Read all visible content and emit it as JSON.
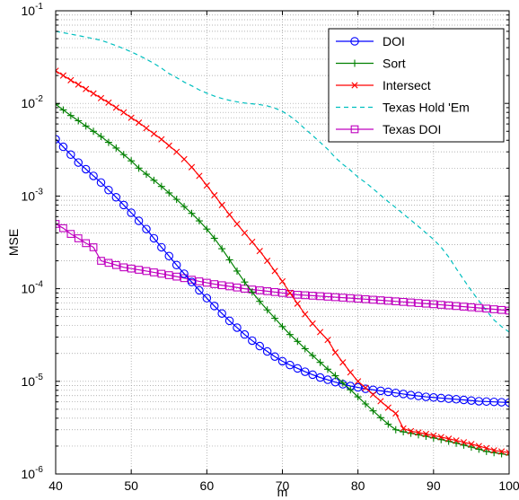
{
  "chart_data": {
    "type": "line",
    "title": "",
    "xlabel": "m",
    "ylabel": "MSE",
    "xlim": [
      40,
      100
    ],
    "ylim_exponents": [
      -6,
      -1
    ],
    "yscale": "log",
    "grid": true,
    "legend_position": "top-right",
    "x_ticks": [
      "40",
      "50",
      "60",
      "70",
      "80",
      "90",
      "100"
    ],
    "y_tick_mantissa": "10",
    "y_tick_exponents": [
      "-6",
      "-5",
      "-4",
      "-3",
      "-2",
      "-1"
    ],
    "x_start": 40,
    "x_step": 1,
    "series": [
      {
        "name": "DOI",
        "color": "#0000ff",
        "marker": "circle",
        "dash": "solid",
        "values": [
          0.0041,
          0.0034,
          0.0028,
          0.0023,
          0.00195,
          0.00165,
          0.0014,
          0.00116,
          0.00097,
          0.0008,
          0.00066,
          0.00054,
          0.00044,
          0.00035,
          0.00028,
          0.000225,
          0.00018,
          0.000145,
          0.000118,
          9.6e-05,
          7.9e-05,
          6.5e-05,
          5.4e-05,
          4.5e-05,
          3.8e-05,
          3.2e-05,
          2.75e-05,
          2.4e-05,
          2.1e-05,
          1.85e-05,
          1.65e-05,
          1.5e-05,
          1.38e-05,
          1.27e-05,
          1.18e-05,
          1.1e-05,
          1.04e-05,
          9.8e-06,
          9.3e-06,
          8.9e-06,
          8.6e-06,
          8.3e-06,
          8.1e-06,
          7.9e-06,
          7.7e-06,
          7.5e-06,
          7.3e-06,
          7.1e-06,
          6.95e-06,
          6.8e-06,
          6.7e-06,
          6.6e-06,
          6.5e-06,
          6.4e-06,
          6.3e-06,
          6.2e-06,
          6.1e-06,
          6.05e-06,
          6e-06,
          5.95e-06,
          5.9e-06
        ]
      },
      {
        "name": "Sort",
        "color": "#008000",
        "marker": "plus",
        "dash": "solid",
        "values": [
          0.0098,
          0.0085,
          0.0074,
          0.0065,
          0.0057,
          0.005,
          0.0044,
          0.0038,
          0.0033,
          0.0028,
          0.0024,
          0.002,
          0.00172,
          0.00148,
          0.00127,
          0.00108,
          0.00092,
          0.00077,
          0.00065,
          0.00054,
          0.00044,
          0.00035,
          0.00027,
          0.000205,
          0.000155,
          0.000118,
          9.2e-05,
          7.3e-05,
          5.9e-05,
          4.8e-05,
          3.9e-05,
          3.2e-05,
          2.7e-05,
          2.25e-05,
          1.9e-05,
          1.6e-05,
          1.35e-05,
          1.15e-05,
          9.6e-06,
          8.1e-06,
          6.8e-06,
          5.7e-06,
          4.8e-06,
          4.05e-06,
          3.45e-06,
          3e-06,
          2.85e-06,
          2.75e-06,
          2.65e-06,
          2.55e-06,
          2.45e-06,
          2.35e-06,
          2.25e-06,
          2.15e-06,
          2.05e-06,
          1.95e-06,
          1.85e-06,
          1.75e-06,
          1.7e-06,
          1.65e-06,
          1.6e-06
        ]
      },
      {
        "name": "Intersect",
        "color": "#ff0000",
        "marker": "x",
        "dash": "solid",
        "values": [
          0.0225,
          0.02,
          0.0178,
          0.016,
          0.0143,
          0.0128,
          0.0114,
          0.0102,
          0.009,
          0.008,
          0.007,
          0.0062,
          0.0054,
          0.0047,
          0.0041,
          0.0035,
          0.003,
          0.0025,
          0.00205,
          0.00165,
          0.0013,
          0.00102,
          0.0008,
          0.00063,
          0.0005,
          0.0004,
          0.00032,
          0.000255,
          0.0002,
          0.000155,
          0.00012,
          9e-05,
          6.9e-05,
          5.3e-05,
          4.2e-05,
          3.4e-05,
          2.8e-05,
          2.05e-05,
          1.6e-05,
          1.25e-05,
          1e-05,
          8.5e-06,
          7.2e-06,
          6.1e-06,
          5.2e-06,
          4.5e-06,
          3.1e-06,
          2.9e-06,
          2.8e-06,
          2.7e-06,
          2.6e-06,
          2.5e-06,
          2.4e-06,
          2.3e-06,
          2.2e-06,
          2.1e-06,
          2e-06,
          1.9e-06,
          1.8e-06,
          1.75e-06,
          1.7e-06
        ]
      },
      {
        "name": "Texas Hold 'Em",
        "color": "#00bfbf",
        "marker": "none",
        "dash": "dashed",
        "values": [
          0.06,
          0.058,
          0.056,
          0.054,
          0.052,
          0.05,
          0.048,
          0.045,
          0.042,
          0.039,
          0.036,
          0.033,
          0.03,
          0.027,
          0.024,
          0.021,
          0.019,
          0.017,
          0.0155,
          0.014,
          0.0129,
          0.012,
          0.0113,
          0.0108,
          0.0104,
          0.0101,
          0.0099,
          0.0097,
          0.0094,
          0.0089,
          0.0082,
          0.0073,
          0.0063,
          0.0053,
          0.0045,
          0.0038,
          0.0032,
          0.0026,
          0.0022,
          0.0019,
          0.0016,
          0.0014,
          0.0012,
          0.00102,
          0.00087,
          0.00075,
          0.00064,
          0.00055,
          0.00047,
          0.0004,
          0.00034,
          0.00028,
          0.00022,
          0.000165,
          0.000125,
          9.5e-05,
          7.4e-05,
          5.8e-05,
          4.6e-05,
          3.9e-05,
          3.4e-05
        ]
      },
      {
        "name": "Texas DOI",
        "color": "#bf00bf",
        "marker": "square",
        "dash": "solid",
        "values": [
          0.0005,
          0.00045,
          0.00039,
          0.00035,
          0.00031,
          0.00028,
          0.0002,
          0.00019,
          0.00018,
          0.00017,
          0.000165,
          0.00016,
          0.000155,
          0.00015,
          0.000145,
          0.00014,
          0.000135,
          0.00013,
          0.000125,
          0.00012,
          0.000116,
          0.000112,
          0.000109,
          0.000106,
          0.000103,
          0.0001,
          9.8e-05,
          9.6e-05,
          9.4e-05,
          9.2e-05,
          9e-05,
          8.8e-05,
          8.6e-05,
          8.5e-05,
          8.4e-05,
          8.3e-05,
          8.2e-05,
          8.1e-05,
          8e-05,
          7.9e-05,
          7.8e-05,
          7.7e-05,
          7.6e-05,
          7.5e-05,
          7.4e-05,
          7.3e-05,
          7.2e-05,
          7.1e-05,
          7e-05,
          6.9e-05,
          6.8e-05,
          6.7e-05,
          6.6e-05,
          6.5e-05,
          6.4e-05,
          6.3e-05,
          6.2e-05,
          6.1e-05,
          6e-05,
          5.9e-05,
          5.8e-05
        ]
      }
    ]
  }
}
